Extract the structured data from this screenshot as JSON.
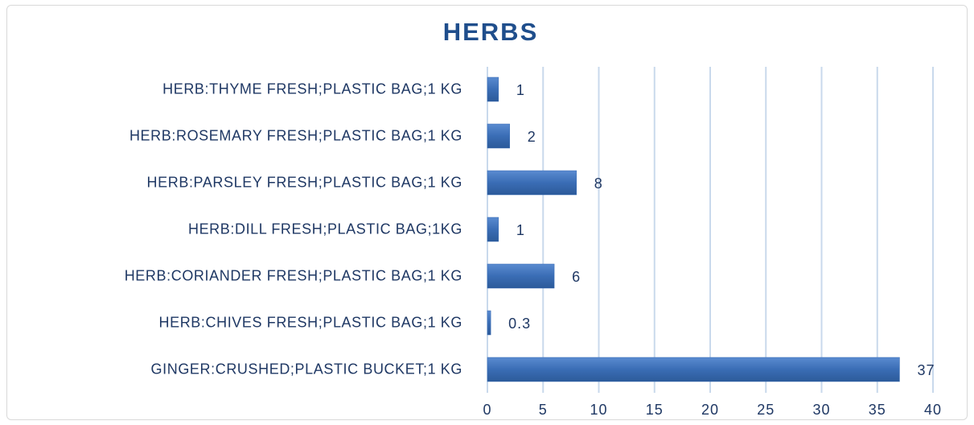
{
  "chart_data": {
    "type": "bar",
    "orientation": "horizontal",
    "title": "HERBS",
    "categories": [
      "HERB:THYME FRESH;PLASTIC BAG;1 KG",
      "HERB:ROSEMARY FRESH;PLASTIC BAG;1 KG",
      "HERB:PARSLEY FRESH;PLASTIC BAG;1 KG",
      "HERB:DILL FRESH;PLASTIC BAG;1KG",
      "HERB:CORIANDER FRESH;PLASTIC BAG;1 KG",
      "HERB:CHIVES FRESH;PLASTIC BAG;1 KG",
      "GINGER:CRUSHED;PLASTIC BUCKET;1 KG"
    ],
    "values": [
      1,
      2,
      8,
      1,
      6,
      0.3,
      37
    ],
    "color": "#3a6db5",
    "xlim": [
      0,
      40
    ],
    "xticks": [
      0,
      5,
      10,
      15,
      20,
      25,
      30,
      35,
      40
    ],
    "grid": true
  }
}
